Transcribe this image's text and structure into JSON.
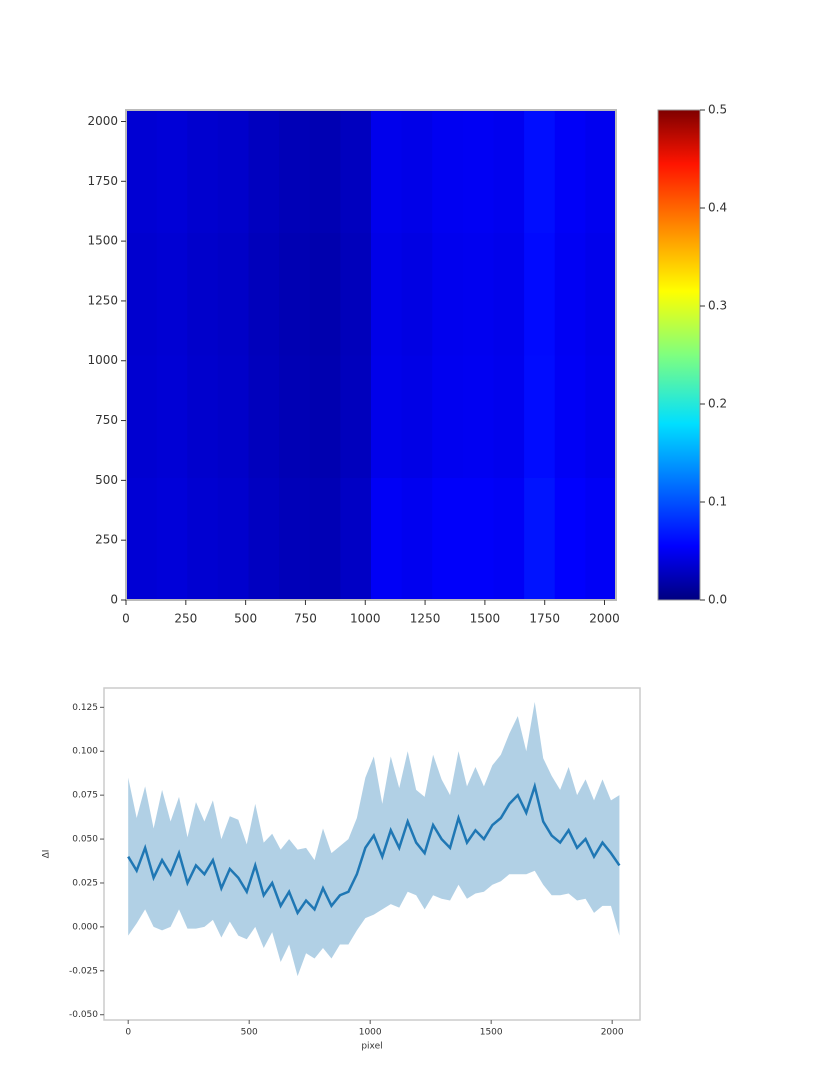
{
  "chart_data": [
    {
      "type": "heatmap",
      "xlim": [
        0,
        2048
      ],
      "ylim": [
        0,
        2048
      ],
      "xticks": [
        0,
        250,
        500,
        750,
        1000,
        1250,
        1500,
        1750,
        2000
      ],
      "yticks": [
        0,
        250,
        500,
        750,
        1000,
        1250,
        1500,
        1750,
        2000
      ],
      "colormap": "jet",
      "clim": [
        0,
        0.5
      ],
      "cticks": [
        {
          "value": 0,
          "label": "0.0"
        },
        0.1,
        0.2,
        0.3,
        0.4,
        0.5
      ],
      "z": [
        [
          0.042,
          0.044,
          0.04,
          0.038,
          0.032,
          0.028,
          0.026,
          0.034,
          0.058,
          0.055,
          0.06,
          0.06,
          0.058,
          0.072,
          0.062,
          0.058
        ],
        [
          0.04,
          0.042,
          0.038,
          0.036,
          0.03,
          0.026,
          0.024,
          0.03,
          0.052,
          0.05,
          0.055,
          0.056,
          0.054,
          0.068,
          0.058,
          0.054
        ],
        [
          0.039,
          0.041,
          0.037,
          0.035,
          0.029,
          0.025,
          0.023,
          0.029,
          0.051,
          0.049,
          0.054,
          0.055,
          0.053,
          0.067,
          0.057,
          0.053
        ],
        [
          0.041,
          0.043,
          0.039,
          0.037,
          0.031,
          0.027,
          0.025,
          0.031,
          0.053,
          0.051,
          0.056,
          0.057,
          0.055,
          0.069,
          0.059,
          0.055
        ]
      ]
    },
    {
      "type": "line",
      "x_label": "pixel",
      "y_label": "ΔI",
      "xlim": [
        -100,
        2115
      ],
      "ylim": [
        -0.053,
        0.136
      ],
      "xticks": [
        0,
        500,
        1000,
        1500,
        2000
      ],
      "yticks": [
        {
          "value": -0.05,
          "label": "-0.050"
        },
        {
          "value": -0.025,
          "label": "-0.025"
        },
        {
          "value": 0,
          "label": "0.000"
        },
        {
          "value": 0.025,
          "label": "0.025"
        },
        {
          "value": 0.05,
          "label": "0.050"
        },
        {
          "value": 0.075,
          "label": "0.075"
        },
        {
          "value": 0.1,
          "label": "0.100"
        },
        {
          "value": 0.125,
          "label": "0.125"
        }
      ],
      "x": [
        0,
        35,
        70,
        105,
        140,
        175,
        210,
        245,
        280,
        315,
        350,
        385,
        420,
        455,
        490,
        525,
        560,
        595,
        630,
        665,
        700,
        735,
        770,
        805,
        840,
        875,
        910,
        945,
        980,
        1015,
        1050,
        1085,
        1120,
        1155,
        1190,
        1225,
        1260,
        1295,
        1330,
        1365,
        1400,
        1435,
        1470,
        1505,
        1540,
        1575,
        1610,
        1645,
        1680,
        1715,
        1750,
        1785,
        1820,
        1855,
        1890,
        1925,
        1960,
        1995,
        2030
      ],
      "series": [
        {
          "color": "#1f77b4",
          "values": [
            0.04,
            0.032,
            0.045,
            0.028,
            0.038,
            0.03,
            0.042,
            0.025,
            0.035,
            0.03,
            0.038,
            0.022,
            0.033,
            0.028,
            0.02,
            0.035,
            0.018,
            0.025,
            0.012,
            0.02,
            0.008,
            0.015,
            0.01,
            0.022,
            0.012,
            0.018,
            0.02,
            0.03,
            0.045,
            0.052,
            0.04,
            0.055,
            0.045,
            0.06,
            0.048,
            0.042,
            0.058,
            0.05,
            0.045,
            0.062,
            0.048,
            0.055,
            0.05,
            0.058,
            0.062,
            0.07,
            0.075,
            0.065,
            0.08,
            0.06,
            0.052,
            0.048,
            0.055,
            0.045,
            0.05,
            0.04,
            0.048,
            0.042,
            0.035
          ],
          "errors": [
            0.045,
            0.03,
            0.035,
            0.028,
            0.04,
            0.03,
            0.032,
            0.026,
            0.036,
            0.03,
            0.034,
            0.028,
            0.03,
            0.033,
            0.027,
            0.035,
            0.03,
            0.028,
            0.032,
            0.03,
            0.036,
            0.03,
            0.028,
            0.034,
            0.03,
            0.028,
            0.03,
            0.032,
            0.04,
            0.045,
            0.03,
            0.042,
            0.034,
            0.04,
            0.03,
            0.032,
            0.04,
            0.034,
            0.03,
            0.038,
            0.032,
            0.036,
            0.03,
            0.034,
            0.036,
            0.04,
            0.045,
            0.035,
            0.048,
            0.036,
            0.034,
            0.03,
            0.036,
            0.03,
            0.034,
            0.032,
            0.036,
            0.03,
            0.04
          ]
        }
      ]
    }
  ]
}
